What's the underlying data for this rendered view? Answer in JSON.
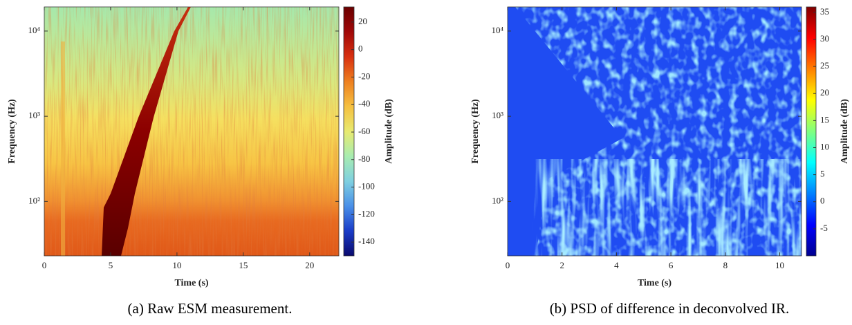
{
  "chart_data": [
    {
      "type": "spectrogram",
      "caption": "(a) Raw ESM measurement.",
      "xlabel": "Time (s)",
      "ylabel": "Frequency (Hz)",
      "colorbar_label": "Amplitude (dB)",
      "xlim": [
        0,
        22.2
      ],
      "xticks": [
        0,
        5,
        10,
        15,
        20
      ],
      "ylim": [
        23,
        19200
      ],
      "yscale": "log",
      "yticks": [
        {
          "value": 100,
          "label": "10²"
        },
        {
          "value": 1000,
          "label": "10³"
        },
        {
          "value": 10000,
          "label": "10⁴"
        }
      ],
      "clim": [
        -150,
        31
      ],
      "cticks": [
        20,
        0,
        -20,
        -40,
        -60,
        -80,
        -100,
        -120,
        -140
      ],
      "colormap": [
        "#0a0a6e",
        "#1a3cc8",
        "#4a90e8",
        "#7fd0e0",
        "#a8ecb0",
        "#e8ea70",
        "#f5c040",
        "#ee8020",
        "#d83010",
        "#a00808",
        "#6a0000"
      ]
    },
    {
      "type": "spectrogram",
      "caption": "(b) PSD of difference in deconvolved IR.",
      "xlabel": "Time (s)",
      "ylabel": "Frequency (Hz)",
      "colorbar_label": "Amplitude (dB)",
      "xlim": [
        0,
        10.8
      ],
      "xticks": [
        0,
        2,
        4,
        6,
        8,
        10
      ],
      "ylim": [
        23,
        19200
      ],
      "yscale": "log",
      "yticks": [
        {
          "value": 100,
          "label": "10²"
        },
        {
          "value": 1000,
          "label": "10³"
        },
        {
          "value": 10000,
          "label": "10⁴"
        }
      ],
      "clim": [
        -10,
        36
      ],
      "cticks": [
        35,
        30,
        25,
        20,
        15,
        10,
        5,
        0,
        -5
      ],
      "colormap": [
        "#00008f",
        "#0000ff",
        "#0080ff",
        "#00ffff",
        "#80ff80",
        "#ffff00",
        "#ff8000",
        "#ff0000",
        "#800000"
      ]
    }
  ]
}
